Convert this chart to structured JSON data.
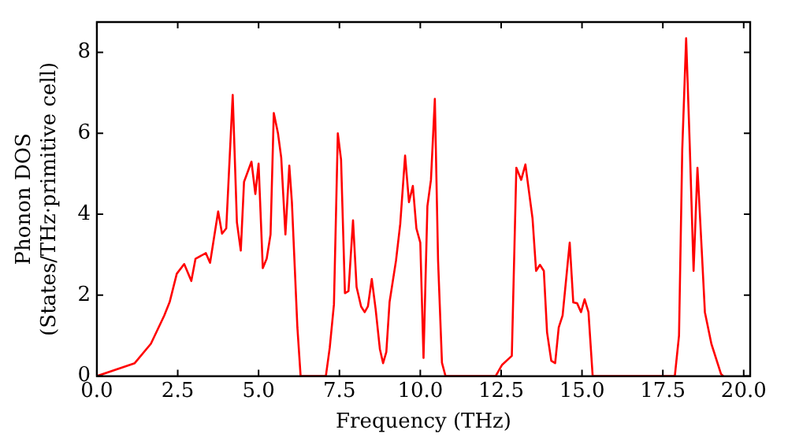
{
  "chart_data": {
    "type": "line",
    "xlabel": "Frequency (THz)",
    "ylabel": "Phonon DOS\n(States/THz·primitive cell)",
    "x": [
      0,
      1.17,
      1.67,
      2.08,
      2.25,
      2.47,
      2.7,
      2.92,
      3.05,
      3.37,
      3.5,
      3.75,
      3.87,
      4.0,
      4.2,
      4.33,
      4.45,
      4.55,
      4.78,
      4.9,
      5.0,
      5.13,
      5.25,
      5.37,
      5.47,
      5.6,
      5.7,
      5.83,
      5.95,
      6.03,
      6.2,
      6.3,
      7.08,
      7.2,
      7.33,
      7.45,
      7.55,
      7.67,
      7.78,
      7.92,
      8.03,
      8.17,
      8.28,
      8.38,
      8.5,
      8.62,
      8.75,
      8.85,
      8.95,
      9.05,
      9.25,
      9.38,
      9.53,
      9.65,
      9.77,
      9.88,
      10.0,
      10.1,
      10.22,
      10.33,
      10.45,
      10.55,
      10.67,
      10.78,
      12.33,
      12.53,
      12.83,
      12.97,
      13.12,
      13.25,
      13.47,
      13.58,
      13.7,
      13.82,
      13.92,
      14.05,
      14.17,
      14.28,
      14.4,
      14.62,
      14.73,
      14.85,
      14.97,
      15.08,
      15.2,
      15.33,
      17.87,
      18.0,
      18.1,
      18.22,
      18.33,
      18.45,
      18.57,
      18.7,
      18.8,
      19.0,
      19.3,
      19.37
    ],
    "series": [
      {
        "color": "#ff0000",
        "values": [
          0,
          0.32,
          0.8,
          1.49,
          1.83,
          2.53,
          2.77,
          2.35,
          2.9,
          3.04,
          2.8,
          4.07,
          3.52,
          3.65,
          6.95,
          3.8,
          3.1,
          4.8,
          5.3,
          4.5,
          5.25,
          2.67,
          2.9,
          3.5,
          6.5,
          6.0,
          5.4,
          3.5,
          5.2,
          4.3,
          1.2,
          0,
          0,
          0.7,
          1.77,
          6.0,
          5.35,
          2.05,
          2.1,
          3.85,
          2.2,
          1.72,
          1.58,
          1.72,
          2.4,
          1.65,
          0.67,
          0.32,
          0.6,
          1.83,
          2.86,
          3.76,
          5.45,
          4.3,
          4.7,
          3.65,
          3.3,
          0.45,
          4.2,
          4.85,
          6.85,
          2.85,
          0.33,
          0,
          0,
          0.28,
          0.5,
          5.15,
          4.85,
          5.23,
          3.9,
          2.6,
          2.75,
          2.6,
          1.08,
          0.38,
          0.32,
          1.2,
          1.5,
          3.3,
          1.82,
          1.8,
          1.58,
          1.9,
          1.58,
          0,
          0,
          1.0,
          5.6,
          8.35,
          5.75,
          2.6,
          5.15,
          3.15,
          1.58,
          0.8,
          0.05,
          0
        ]
      }
    ],
    "xlim": [
      0,
      20.2
    ],
    "xticks": [
      {
        "value": 0,
        "label": "0.0"
      },
      {
        "value": 2.5,
        "label": "2.5"
      },
      {
        "value": 5,
        "label": "5.0"
      },
      {
        "value": 7.5,
        "label": "7.5"
      },
      {
        "value": 10,
        "label": "10.0"
      },
      {
        "value": 12.5,
        "label": "12.5"
      },
      {
        "value": 15,
        "label": "15.0"
      },
      {
        "value": 17.5,
        "label": "17.5"
      },
      {
        "value": 20,
        "label": "20.0"
      }
    ],
    "ylim": [
      0,
      8.75
    ],
    "yticks": [
      0,
      2,
      4,
      6,
      8
    ],
    "grid": false,
    "legend": false,
    "marker": "none",
    "line_style": "solid"
  }
}
